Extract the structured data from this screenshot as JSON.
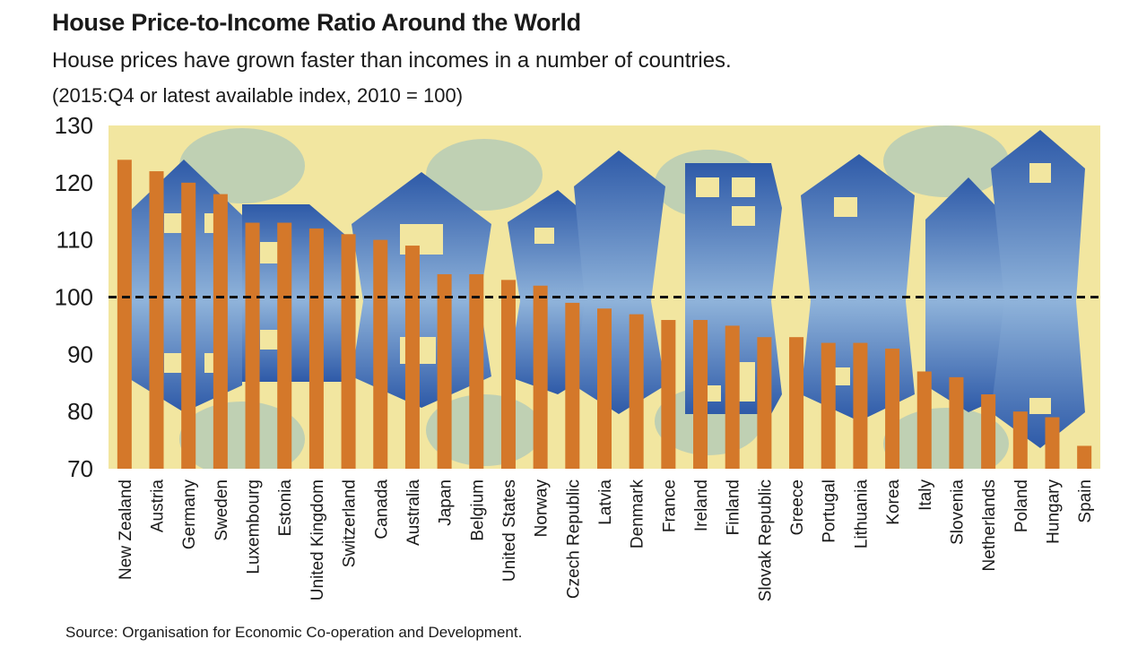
{
  "title": "House Price-to-Income Ratio Around the World",
  "subtitle": "House prices have grown faster than incomes in a number of countries.",
  "note": "(2015:Q4 or latest available index, 2010 = 100)",
  "source": "Source: Organisation for Economic Co-operation and Development.",
  "colors": {
    "bar": "#D4782A",
    "background": "#F2E6A0",
    "house": "#3F6DB5",
    "tree": "#B9CDB5",
    "reference_line": "#111111"
  },
  "chart_data": {
    "type": "bar",
    "title": "House Price-to-Income Ratio Around the World",
    "subtitle": "House prices have grown faster than incomes in a number of countries.",
    "xlabel": "",
    "ylabel": "",
    "ylim": [
      70,
      130
    ],
    "yticks": [
      70,
      80,
      90,
      100,
      110,
      120,
      130
    ],
    "reference_line": 100,
    "grid": false,
    "legend": "none",
    "categories": [
      "New Zealand",
      "Austria",
      "Germany",
      "Sweden",
      "Luxembourg",
      "Estonia",
      "United Kingdom",
      "Switzerland",
      "Canada",
      "Australia",
      "Japan",
      "Belgium",
      "United States",
      "Norway",
      "Czech Republic",
      "Latvia",
      "Denmark",
      "France",
      "Ireland",
      "Finland",
      "Slovak Republic",
      "Greece",
      "Portugal",
      "Lithuania",
      "Korea",
      "Italy",
      "Slovenia",
      "Netherlands",
      "Poland",
      "Hungary",
      "Spain"
    ],
    "values": [
      124,
      122,
      120,
      118,
      113,
      113,
      112,
      111,
      110,
      109,
      104,
      104,
      103,
      102,
      99,
      98,
      97,
      96,
      96,
      95,
      93,
      93,
      92,
      92,
      91,
      87,
      86,
      83,
      80,
      79,
      74
    ]
  }
}
